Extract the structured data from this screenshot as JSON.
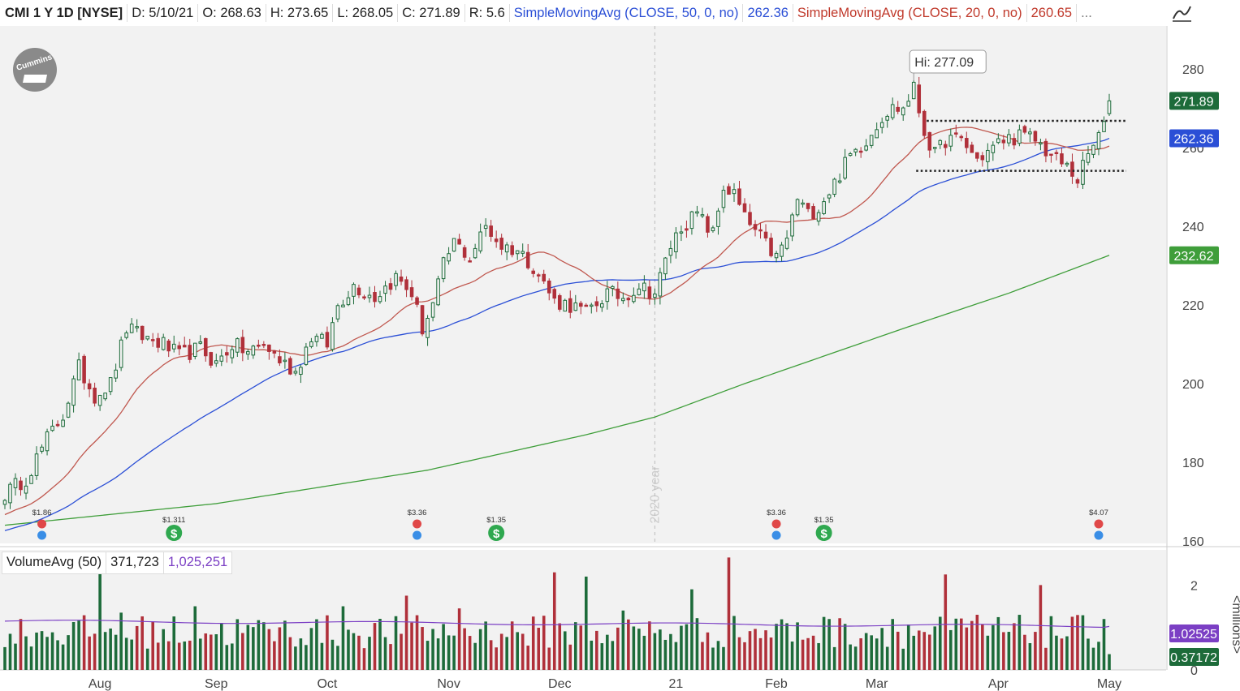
{
  "header": {
    "symbol": "CMI 1 Y 1D [NYSE]",
    "date": "D: 5/10/21",
    "open": "O: 268.63",
    "high": "H: 273.65",
    "low": "L: 268.05",
    "close": "C: 271.89",
    "range": "R: 5.6",
    "sma50_label": "SimpleMovingAvg (CLOSE, 50, 0, no)",
    "sma50_value": "262.36",
    "sma20_label": "SimpleMovingAvg (CLOSE, 20, 0, no)",
    "sma20_value": "260.65",
    "more": "..."
  },
  "volume_header": {
    "label": "VolumeAvg (50)",
    "volume": "371,723",
    "avg": "1,025,251"
  },
  "hi_label": "Hi: 277.09",
  "year_marker": "2020 year",
  "logo_text": "Cummins",
  "colors": {
    "up": "#1d6b3a",
    "down": "#b0303a",
    "sma50": "#2b4fd6",
    "sma20": "#c0584f",
    "sma200": "#3f9e3a",
    "vol_avg": "#7b3fc4",
    "tag_close": "#1d6b3a",
    "tag_sma50": "#2b4fd6",
    "tag_sma200": "#3f9e3a",
    "tag_vol_avg": "#7b3fc4",
    "tag_vol": "#1d6b3a"
  },
  "chart_data": {
    "type": "candlestick",
    "price_axis": {
      "ylim": [
        160,
        285
      ],
      "ticks": [
        160,
        180,
        200,
        220,
        240,
        260,
        280
      ]
    },
    "volume_axis": {
      "unit_label": "<millions>",
      "ylim": [
        0,
        2.6
      ],
      "ticks": [
        0,
        2
      ]
    },
    "month_labels": [
      {
        "label": "Aug",
        "day": 18
      },
      {
        "label": "Sep",
        "day": 40
      },
      {
        "label": "Oct",
        "day": 61
      },
      {
        "label": "Nov",
        "day": 84
      },
      {
        "label": "Dec",
        "day": 105
      },
      {
        "label": "21",
        "day": 127
      },
      {
        "label": "Feb",
        "day": 146
      },
      {
        "label": "Apr",
        "day": 188
      },
      {
        "label": "Mar",
        "day": 165
      },
      {
        "label": "May",
        "day": 209
      }
    ],
    "year_divider_day": 123,
    "tags": [
      {
        "name": "close",
        "value": 271.89,
        "label": "271.89"
      },
      {
        "name": "sma50",
        "value": 262.36,
        "label": "262.36"
      },
      {
        "name": "sma200",
        "value": 232.62,
        "label": "232.62"
      }
    ],
    "volume_tags": [
      {
        "name": "vol-avg",
        "value": 1.02525,
        "label": "1.02525"
      },
      {
        "name": "vol-last",
        "value": 0.37172,
        "label": "0.37172"
      }
    ],
    "hi": {
      "day": 172,
      "value": 277.09
    },
    "resistance": {
      "value": 266.8,
      "from_day": 176,
      "to_day": 211
    },
    "support": {
      "value": 254.1,
      "from_day": 174,
      "to_day": 211
    },
    "anchors": [
      [
        0,
        172
      ],
      [
        4,
        176
      ],
      [
        8,
        186
      ],
      [
        11,
        192
      ],
      [
        14,
        204
      ],
      [
        17,
        197
      ],
      [
        20,
        200
      ],
      [
        23,
        214
      ],
      [
        26,
        212
      ],
      [
        30,
        210
      ],
      [
        33,
        207
      ],
      [
        37,
        209
      ],
      [
        40,
        205
      ],
      [
        43,
        210
      ],
      [
        46,
        208
      ],
      [
        49,
        210
      ],
      [
        52,
        206
      ],
      [
        55,
        203
      ],
      [
        58,
        212
      ],
      [
        61,
        210
      ],
      [
        63,
        220
      ],
      [
        66,
        225
      ],
      [
        70,
        222
      ],
      [
        74,
        227
      ],
      [
        77,
        223
      ],
      [
        79,
        214
      ],
      [
        81,
        220
      ],
      [
        83,
        230
      ],
      [
        85,
        236
      ],
      [
        88,
        232
      ],
      [
        91,
        240
      ],
      [
        94,
        235
      ],
      [
        97,
        234
      ],
      [
        100,
        230
      ],
      [
        104,
        221
      ],
      [
        107,
        220
      ],
      [
        110,
        218
      ],
      [
        114,
        223
      ],
      [
        117,
        222
      ],
      [
        120,
        225
      ],
      [
        123,
        223
      ],
      [
        126,
        235
      ],
      [
        128,
        240
      ],
      [
        131,
        243
      ],
      [
        134,
        238
      ],
      [
        136,
        250
      ],
      [
        138,
        248
      ],
      [
        140,
        242
      ],
      [
        143,
        237
      ],
      [
        146,
        232
      ],
      [
        148,
        237
      ],
      [
        150,
        247
      ],
      [
        152,
        243
      ],
      [
        154,
        245
      ],
      [
        157,
        251
      ],
      [
        160,
        258
      ],
      [
        163,
        262
      ],
      [
        166,
        268
      ],
      [
        168,
        270
      ],
      [
        170,
        270
      ],
      [
        172,
        275
      ],
      [
        174,
        264
      ],
      [
        176,
        258
      ],
      [
        178,
        262
      ],
      [
        181,
        262
      ],
      [
        184,
        257
      ],
      [
        186,
        259
      ],
      [
        189,
        262
      ],
      [
        192,
        263
      ],
      [
        195,
        262
      ],
      [
        198,
        258
      ],
      [
        201,
        255
      ],
      [
        203,
        252
      ],
      [
        205,
        258
      ],
      [
        207,
        263
      ],
      [
        208,
        265
      ],
      [
        209,
        271.89
      ]
    ],
    "candle_count": 210,
    "sma200_anchors": [
      [
        0,
        164
      ],
      [
        40,
        169.5
      ],
      [
        80,
        178
      ],
      [
        110,
        187
      ],
      [
        123,
        191.5
      ],
      [
        140,
        200
      ],
      [
        170,
        214
      ],
      [
        190,
        223
      ],
      [
        209,
        232.62
      ]
    ],
    "volume_spikes": [
      [
        18,
        2.55
      ],
      [
        22,
        1.35
      ],
      [
        36,
        1.5
      ],
      [
        64,
        1.5
      ],
      [
        76,
        1.75
      ],
      [
        86,
        1.45
      ],
      [
        104,
        2.3
      ],
      [
        110,
        2.2
      ],
      [
        117,
        1.4
      ],
      [
        130,
        1.9
      ],
      [
        137,
        2.65
      ],
      [
        148,
        1.1
      ],
      [
        156,
        1.2
      ],
      [
        168,
        1.2
      ],
      [
        178,
        2.25
      ],
      [
        184,
        1.3
      ],
      [
        196,
        2.0
      ],
      [
        208,
        1.2
      ]
    ],
    "events": [
      {
        "day": 7,
        "kind": "earnings",
        "label": "$1.86"
      },
      {
        "day": 32,
        "kind": "dividend",
        "label": "$1.311"
      },
      {
        "day": 78,
        "kind": "earnings",
        "label": "$3.36"
      },
      {
        "day": 93,
        "kind": "dividend",
        "label": "$1.35"
      },
      {
        "day": 146,
        "kind": "earnings",
        "label": "$3.36"
      },
      {
        "day": 155,
        "kind": "dividend",
        "label": "$1.35"
      },
      {
        "day": 207,
        "kind": "earnings",
        "label": "$4.07"
      }
    ]
  }
}
